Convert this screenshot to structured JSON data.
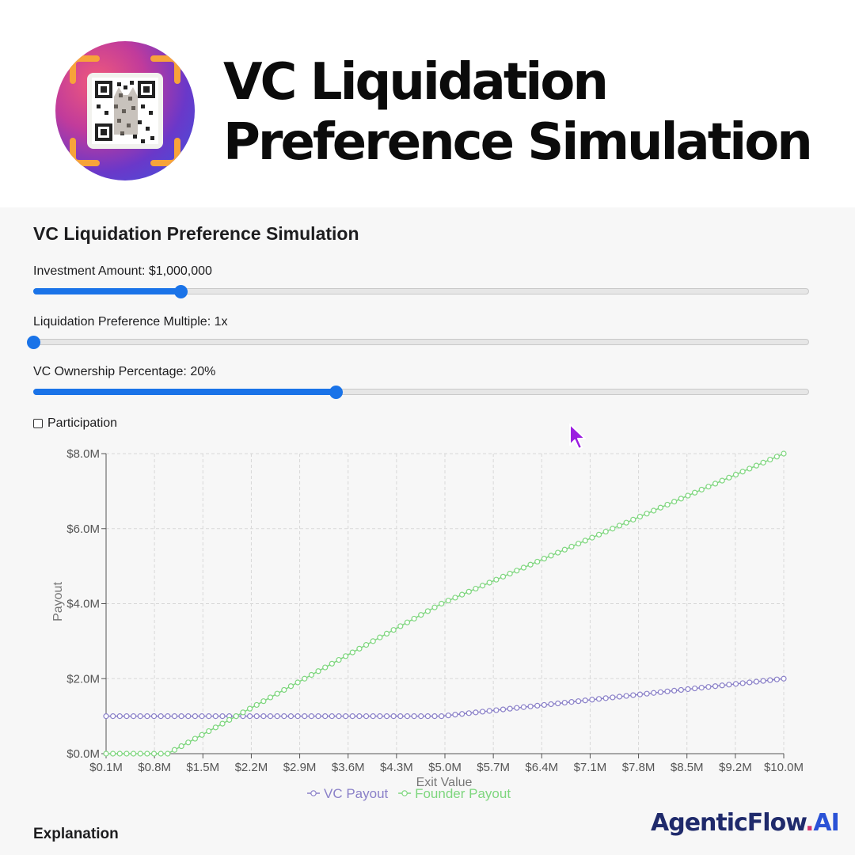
{
  "header": {
    "title_line1": "VC Liquidation",
    "title_line2": "Preference Simulation"
  },
  "app": {
    "title": "VC Liquidation Preference Simulation",
    "sliders": [
      {
        "label": "Investment Amount: $1,000,000",
        "fraction": 0.19
      },
      {
        "label": "Liquidation Preference Multiple: 1x",
        "fraction": 0.0
      },
      {
        "label": "VC Ownership Percentage: 20%",
        "fraction": 0.39
      }
    ],
    "participation": {
      "label": "Participation",
      "checked": false
    },
    "explanation_heading": "Explanation"
  },
  "chart_data": {
    "type": "line",
    "xlabel": "Exit Value",
    "ylabel": "Payout",
    "x_ticks": [
      "$0.1M",
      "$0.8M",
      "$1.5M",
      "$2.2M",
      "$2.9M",
      "$3.6M",
      "$4.3M",
      "$5.0M",
      "$5.7M",
      "$6.4M",
      "$7.1M",
      "$7.8M",
      "$8.5M",
      "$9.2M",
      "$10.0M"
    ],
    "y_ticks": [
      "$0.0M",
      "$2.0M",
      "$4.0M",
      "$6.0M",
      "$8.0M"
    ],
    "xlim": [
      0.1,
      10.0
    ],
    "ylim": [
      0,
      8
    ],
    "x_step": 0.1,
    "units": "$M",
    "grid": true,
    "legend_position": "bottom",
    "series": [
      {
        "name": "VC Payout",
        "color": "#8a80c8",
        "points": [
          [
            0.1,
            1.0
          ],
          [
            5.0,
            1.0
          ],
          [
            10.0,
            2.0
          ]
        ]
      },
      {
        "name": "Founder Payout",
        "color": "#7ed67e",
        "points": [
          [
            0.1,
            0.0
          ],
          [
            1.0,
            0.0
          ],
          [
            5.0,
            4.0
          ],
          [
            10.0,
            8.0
          ]
        ]
      }
    ]
  },
  "branding": {
    "name_part1": "AgenticFlow",
    "name_dot": ".",
    "name_part2": "AI"
  }
}
